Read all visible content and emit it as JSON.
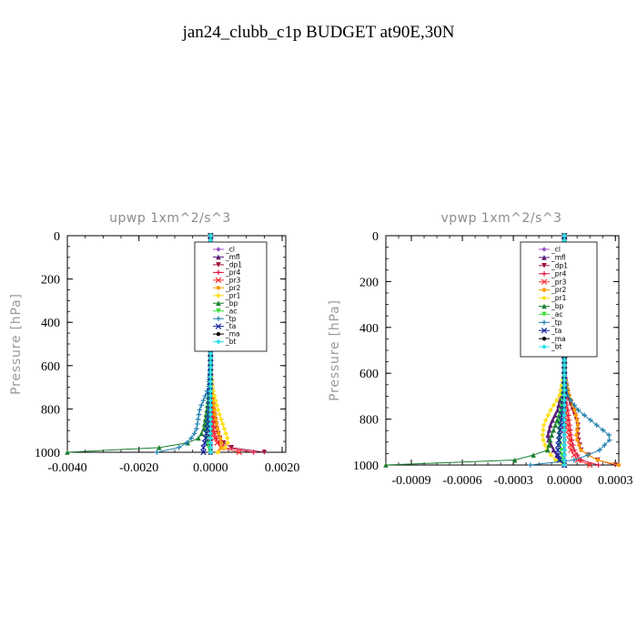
{
  "figure": {
    "title": "jan24_clubb_c1p  BUDGET at90E,30N"
  },
  "chart_data": [
    {
      "type": "line",
      "title": "upwp   1xm^2/s^3",
      "xlabel": "",
      "ylabel": "Pressure [hPa]",
      "xlim": [
        -0.004,
        0.0021
      ],
      "ylim": [
        1000,
        0
      ],
      "xticks": [
        -0.004,
        -0.002,
        0.0,
        0.002
      ],
      "xtick_labels": [
        "-0.0040",
        "-0.0020",
        "0.0000",
        "0.0020"
      ],
      "yticks": [
        0,
        200,
        400,
        600,
        800,
        1000
      ],
      "ytick_labels": [
        "0",
        "200",
        "400",
        "600",
        "800",
        "1000"
      ],
      "legend": {
        "placement": "top-right"
      },
      "series": [
        {
          "name": "_cl",
          "color": "#9a56c8",
          "x": [
            0,
            0,
            0,
            0,
            0,
            0,
            0,
            0,
            0
          ],
          "y": [
            0,
            300,
            600,
            700,
            800,
            900,
            950,
            980,
            1000
          ]
        },
        {
          "name": "_mfl",
          "color": "#5a1f7a",
          "x": [
            0,
            0,
            0,
            0,
            0,
            0,
            0,
            0,
            0
          ],
          "y": [
            0,
            300,
            600,
            700,
            800,
            900,
            950,
            980,
            1000
          ]
        },
        {
          "name": "_dp1",
          "color": "#a0143c",
          "x": [
            0,
            0,
            0,
            3e-05,
            8e-05,
            0.00018,
            0.0003,
            0.0006,
            0.0015
          ],
          "y": [
            0,
            300,
            600,
            700,
            800,
            900,
            950,
            980,
            1000
          ]
        },
        {
          "name": "_pr4",
          "color": "#e0103c",
          "x": [
            0,
            0,
            0,
            0,
            2e-05,
            8e-05,
            0.0002,
            0.0004,
            0.0012
          ],
          "y": [
            0,
            300,
            600,
            700,
            800,
            900,
            950,
            980,
            1000
          ]
        },
        {
          "name": "_pr3",
          "color": "#ff3030",
          "x": [
            0,
            0,
            0,
            0,
            2e-05,
            6e-05,
            0.00015,
            0.0003,
            0.0008
          ],
          "y": [
            0,
            300,
            600,
            700,
            800,
            900,
            950,
            980,
            1000
          ]
        },
        {
          "name": "_pr2",
          "color": "#ff9a00",
          "x": [
            0,
            0,
            0,
            2e-05,
            0.0001,
            0.0002,
            0.0003,
            0.0003,
            0.0002
          ],
          "y": [
            0,
            300,
            600,
            700,
            800,
            900,
            950,
            980,
            1000
          ]
        },
        {
          "name": "_pr1",
          "color": "#ffe020",
          "x": [
            0,
            0,
            0,
            5e-05,
            0.0002,
            0.0004,
            0.0005,
            0.0004,
            0.0002
          ],
          "y": [
            0,
            300,
            600,
            700,
            800,
            900,
            950,
            980,
            1000
          ]
        },
        {
          "name": "_bp",
          "color": "#1a7f2e",
          "x": [
            0,
            0,
            0,
            0,
            -0.0001,
            -0.0002,
            -0.0004,
            -0.0015,
            -0.004
          ],
          "y": [
            0,
            300,
            600,
            700,
            800,
            900,
            950,
            980,
            1000
          ]
        },
        {
          "name": "_ac",
          "color": "#40e040",
          "x": [
            0,
            0,
            0,
            -4e-05,
            -8e-05,
            -0.00012,
            -0.0001,
            -5e-05,
            0
          ],
          "y": [
            0,
            300,
            600,
            700,
            800,
            900,
            950,
            980,
            1000
          ]
        },
        {
          "name": "_tp",
          "color": "#1e7fb0",
          "x": [
            0,
            0,
            0,
            -5e-05,
            -0.0003,
            -0.0004,
            -0.0006,
            -0.0009,
            -0.0015
          ],
          "y": [
            0,
            300,
            600,
            700,
            800,
            900,
            950,
            980,
            1000
          ]
        },
        {
          "name": "_ta",
          "color": "#1428a0",
          "x": [
            0,
            0,
            0,
            -2e-05,
            -5e-05,
            -0.0001,
            -0.00015,
            -0.0002,
            -0.0002
          ],
          "y": [
            0,
            300,
            600,
            700,
            800,
            900,
            950,
            980,
            1000
          ]
        },
        {
          "name": "_ma",
          "color": "#000000",
          "x": [
            0,
            0,
            0,
            0,
            0,
            0,
            0,
            0,
            0
          ],
          "y": [
            0,
            300,
            600,
            700,
            800,
            900,
            950,
            980,
            1000
          ]
        },
        {
          "name": "_bt",
          "color": "#30e0e8",
          "x": [
            0,
            0,
            0,
            0,
            0,
            0,
            0,
            0,
            0
          ],
          "y": [
            0,
            300,
            600,
            700,
            800,
            900,
            950,
            980,
            1000
          ]
        }
      ]
    },
    {
      "type": "line",
      "title": "vpwp   1xm^2/s^3",
      "xlabel": "",
      "ylabel": "Pressure [hPa]",
      "xlim": [
        -0.00105,
        0.00032
      ],
      "ylim": [
        1000,
        0
      ],
      "xticks": [
        -0.0009,
        -0.0006,
        -0.0003,
        0.0,
        0.0003
      ],
      "xtick_labels": [
        "-0.0009",
        "-0.0006",
        "-0.0003",
        "0.0000",
        "0.0003"
      ],
      "yticks": [
        0,
        200,
        400,
        600,
        800,
        1000
      ],
      "ytick_labels": [
        "0",
        "200",
        "400",
        "600",
        "800",
        "1000"
      ],
      "legend": {
        "placement": "top-right"
      },
      "series": [
        {
          "name": "_cl",
          "color": "#9a56c8",
          "x": [
            0,
            0,
            0,
            0,
            0,
            0,
            0,
            0,
            0,
            0
          ],
          "y": [
            0,
            300,
            600,
            700,
            760,
            820,
            880,
            940,
            980,
            1000
          ]
        },
        {
          "name": "_mfl",
          "color": "#5a1f7a",
          "x": [
            0,
            0,
            0,
            -2e-05,
            -4e-05,
            -8e-05,
            -0.0001,
            -6e-05,
            -2e-05,
            0
          ],
          "y": [
            0,
            300,
            600,
            700,
            760,
            820,
            880,
            940,
            980,
            1000
          ]
        },
        {
          "name": "_dp1",
          "color": "#a0143c",
          "x": [
            0,
            0,
            0,
            2e-05,
            5e-05,
            8e-05,
            8e-05,
            0.0001,
            0.0002,
            0.0003
          ],
          "y": [
            0,
            300,
            600,
            700,
            760,
            820,
            880,
            940,
            980,
            1000
          ]
        },
        {
          "name": "_pr4",
          "color": "#e0103c",
          "x": [
            0,
            0,
            0,
            0,
            2e-05,
            3e-05,
            4e-05,
            6e-05,
            0.0001,
            0.0002
          ],
          "y": [
            0,
            300,
            600,
            700,
            760,
            820,
            880,
            940,
            980,
            1000
          ]
        },
        {
          "name": "_pr3",
          "color": "#ff3030",
          "x": [
            0,
            0,
            0,
            0,
            1e-05,
            2e-05,
            3e-05,
            4e-05,
            8e-05,
            0.00015
          ],
          "y": [
            0,
            300,
            600,
            700,
            760,
            820,
            880,
            940,
            980,
            1000
          ]
        },
        {
          "name": "_pr2",
          "color": "#ff9a00",
          "x": [
            0,
            0,
            0,
            3e-05,
            6e-05,
            8e-05,
            7e-05,
            0.0001,
            0.0002,
            0.00032
          ],
          "y": [
            0,
            300,
            600,
            700,
            760,
            820,
            880,
            940,
            980,
            1000
          ]
        },
        {
          "name": "_pr1",
          "color": "#ffe020",
          "x": [
            0,
            0,
            0,
            -3e-05,
            -8e-05,
            -0.00012,
            -0.00013,
            -0.0001,
            -5e-05,
            0
          ],
          "y": [
            0,
            300,
            600,
            700,
            760,
            820,
            880,
            940,
            980,
            1000
          ]
        },
        {
          "name": "_bp",
          "color": "#1a7f2e",
          "x": [
            0,
            0,
            0,
            0,
            -2e-05,
            -5e-05,
            -8e-05,
            -0.0001,
            -0.0003,
            -0.00105
          ],
          "y": [
            0,
            300,
            600,
            700,
            760,
            820,
            880,
            940,
            980,
            1000
          ]
        },
        {
          "name": "_ac",
          "color": "#40e040",
          "x": [
            0,
            0,
            0,
            -1e-05,
            -2e-05,
            -3e-05,
            -3e-05,
            -2e-05,
            -1e-05,
            0
          ],
          "y": [
            0,
            300,
            600,
            700,
            760,
            820,
            880,
            940,
            980,
            1000
          ]
        },
        {
          "name": "_tp",
          "color": "#1e7fb0",
          "x": [
            0,
            0,
            0,
            2e-05,
            8e-05,
            0.00018,
            0.00028,
            0.0002,
            5e-05,
            -0.0002
          ],
          "y": [
            0,
            300,
            600,
            700,
            760,
            820,
            880,
            940,
            980,
            1000
          ]
        },
        {
          "name": "_ta",
          "color": "#1428a0",
          "x": [
            0,
            0,
            0,
            0,
            -1e-05,
            -2e-05,
            -3e-05,
            -4e-05,
            -3e-05,
            0
          ],
          "y": [
            0,
            300,
            600,
            700,
            760,
            820,
            880,
            940,
            980,
            1000
          ]
        },
        {
          "name": "_ma",
          "color": "#000000",
          "x": [
            0,
            0,
            0,
            0,
            0,
            0,
            0,
            0,
            0,
            0
          ],
          "y": [
            0,
            300,
            600,
            700,
            760,
            820,
            880,
            940,
            980,
            1000
          ]
        },
        {
          "name": "_bt",
          "color": "#30e0e8",
          "x": [
            0,
            0,
            0,
            0,
            0,
            0,
            0,
            0,
            0,
            0
          ],
          "y": [
            0,
            300,
            600,
            700,
            760,
            820,
            880,
            940,
            980,
            1000
          ]
        }
      ]
    }
  ]
}
